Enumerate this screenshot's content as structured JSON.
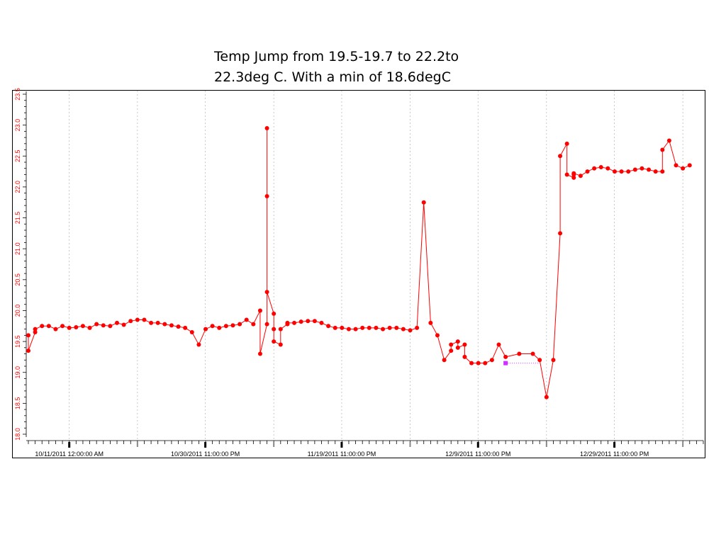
{
  "slide": {
    "title_line1": "Temp Jump from 19.5-19.7 to 22.2to",
    "title_line2": "22.3deg C. With a min of 18.6degC"
  },
  "colors": {
    "series": "#ff0000",
    "missing_marker": "#cc33ff",
    "axis": "#000000",
    "tick_label_y": "#ff0000",
    "grid": "#bbbbbb"
  },
  "chart_data": {
    "type": "line",
    "title": "",
    "xlabel": "",
    "ylabel": "",
    "ylim": [
      18.0,
      23.5
    ],
    "xlim": [
      "2011-10-05",
      "2012-01-12"
    ],
    "yticks": [
      "18.0",
      "18.5",
      "19.0",
      "19.5",
      "20.0",
      "20.5",
      "21.0",
      "21.5",
      "22.0",
      "22.5",
      "23.0",
      "23.5"
    ],
    "xticks": [
      "10/11/2011 12:00:00 AM",
      "10/30/2011 11:00:00 PM",
      "11/19/2011 11:00:00 PM",
      "12/9/2011 11:00:00 PM",
      "12/29/2011 11:00:00 PM"
    ],
    "grid": "vertical dotted",
    "y_tick_color": "red",
    "series": [
      {
        "values_x": [
          "2011-10-05",
          "2011-10-05",
          "2011-10-06",
          "2011-10-06",
          "2011-10-07",
          "2011-10-08",
          "2011-10-09",
          "2011-10-10",
          "2011-10-11",
          "2011-10-12",
          "2011-10-13",
          "2011-10-14",
          "2011-10-15",
          "2011-10-16",
          "2011-10-17",
          "2011-10-18",
          "2011-10-19",
          "2011-10-20",
          "2011-10-21",
          "2011-10-22",
          "2011-10-23",
          "2011-10-24",
          "2011-10-25",
          "2011-10-26",
          "2011-10-27",
          "2011-10-28",
          "2011-10-29",
          "2011-10-30",
          "2011-10-31",
          "2011-11-01",
          "2011-11-02",
          "2011-11-03",
          "2011-11-04",
          "2011-11-05",
          "2011-11-06",
          "2011-11-07",
          "2011-11-08",
          "2011-11-08",
          "2011-11-09",
          "2011-11-09",
          "2011-11-09",
          "2011-11-09",
          "2011-11-10",
          "2011-11-10",
          "2011-11-10",
          "2011-11-11",
          "2011-11-11",
          "2011-11-12",
          "2011-11-12",
          "2011-11-13",
          "2011-11-14",
          "2011-11-15",
          "2011-11-16",
          "2011-11-17",
          "2011-11-18",
          "2011-11-19",
          "2011-11-20",
          "2011-11-21",
          "2011-11-22",
          "2011-11-23",
          "2011-11-24",
          "2011-11-25",
          "2011-11-26",
          "2011-11-27",
          "2011-11-28",
          "2011-11-29",
          "2011-11-30",
          "2011-12-01",
          "2011-12-02",
          "2011-12-03",
          "2011-12-04",
          "2011-12-05",
          "2011-12-06",
          "2011-12-06",
          "2011-12-07",
          "2011-12-07",
          "2011-12-08",
          "2011-12-08",
          "2011-12-09",
          "2011-12-10",
          "2011-12-11",
          "2011-12-12",
          "2011-12-13",
          "2011-12-14",
          "2011-12-16",
          "2011-12-18",
          "2011-12-19",
          "2011-12-20",
          "2011-12-21",
          "2011-12-22",
          "2011-12-22",
          "2011-12-23",
          "2011-12-23",
          "2011-12-24",
          "2011-12-24",
          "2011-12-24",
          "2011-12-25",
          "2011-12-26",
          "2011-12-27",
          "2011-12-28",
          "2011-12-29",
          "2011-12-30",
          "2011-12-31",
          "2012-01-01",
          "2012-01-02",
          "2012-01-03",
          "2012-01-04",
          "2012-01-05",
          "2012-01-06",
          "2012-01-06",
          "2012-01-07",
          "2012-01-08",
          "2012-01-09",
          "2012-01-10"
        ],
        "values_y": [
          19.6,
          19.35,
          19.65,
          19.7,
          19.75,
          19.75,
          19.7,
          19.75,
          19.72,
          19.73,
          19.75,
          19.72,
          19.78,
          19.76,
          19.75,
          19.8,
          19.77,
          19.83,
          19.85,
          19.85,
          19.8,
          19.8,
          19.78,
          19.76,
          19.74,
          19.72,
          19.65,
          19.45,
          19.7,
          19.75,
          19.72,
          19.75,
          19.76,
          19.78,
          19.85,
          19.78,
          20.0,
          19.3,
          19.78,
          21.85,
          22.95,
          20.3,
          19.95,
          19.7,
          19.5,
          19.45,
          19.7,
          19.78,
          19.8,
          19.8,
          19.82,
          19.83,
          19.83,
          19.8,
          19.75,
          19.72,
          19.72,
          19.7,
          19.7,
          19.72,
          19.72,
          19.72,
          19.7,
          19.72,
          19.72,
          19.7,
          19.68,
          19.72,
          21.75,
          19.8,
          19.6,
          19.2,
          19.35,
          19.45,
          19.5,
          19.4,
          19.45,
          19.25,
          19.15,
          19.15,
          19.15,
          19.2,
          19.45,
          19.25,
          19.3,
          19.3,
          19.2,
          18.6,
          19.2,
          21.25,
          22.5,
          22.7,
          22.2,
          22.15,
          22.2,
          22.22,
          22.18,
          22.25,
          22.3,
          22.32,
          22.3,
          22.25,
          22.25,
          22.25,
          22.28,
          22.3,
          22.28,
          22.25,
          22.25,
          22.6,
          22.75,
          22.35,
          22.3,
          22.35,
          22.6
        ],
        "missing_interval": {
          "from": "2011-12-14",
          "to": "2011-12-19",
          "y": 19.15
        }
      }
    ]
  }
}
